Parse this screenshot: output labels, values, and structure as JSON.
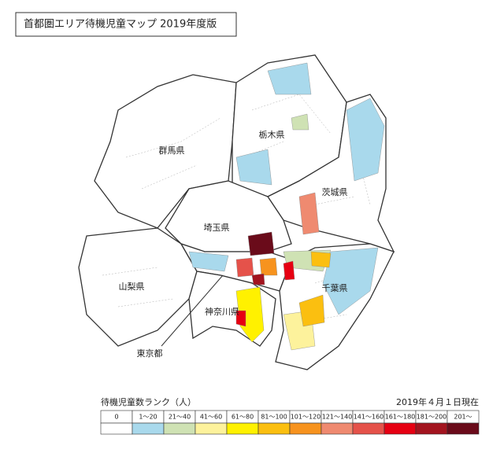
{
  "title": "首都圏エリア待機児童マップ 2019年度版",
  "prefectures": [
    {
      "label": "群馬県"
    },
    {
      "label": "栃木県"
    },
    {
      "label": "茨城県"
    },
    {
      "label": "埼玉県"
    },
    {
      "label": "山梨県"
    },
    {
      "label": "神奈川県"
    },
    {
      "label": "千葉県"
    },
    {
      "label": "東京都"
    }
  ],
  "legend": {
    "title": "待機児童数ランク（人）",
    "date": "2019年４月１日現在",
    "ranges": [
      {
        "label": "0",
        "color": "#ffffff"
      },
      {
        "label": "1〜20",
        "color": "#a9d9ec"
      },
      {
        "label": "21〜40",
        "color": "#cfe2b4"
      },
      {
        "label": "41〜60",
        "color": "#fdf29c"
      },
      {
        "label": "61〜80",
        "color": "#fff100"
      },
      {
        "label": "81〜100",
        "color": "#fbbf10"
      },
      {
        "label": "101〜120",
        "color": "#f7931e"
      },
      {
        "label": "121〜140",
        "color": "#ef8a70"
      },
      {
        "label": "141〜160",
        "color": "#e5524a"
      },
      {
        "label": "161〜180",
        "color": "#e60012"
      },
      {
        "label": "181〜200",
        "color": "#a3141f"
      },
      {
        "label": "201〜",
        "color": "#6a0b1a"
      }
    ]
  }
}
